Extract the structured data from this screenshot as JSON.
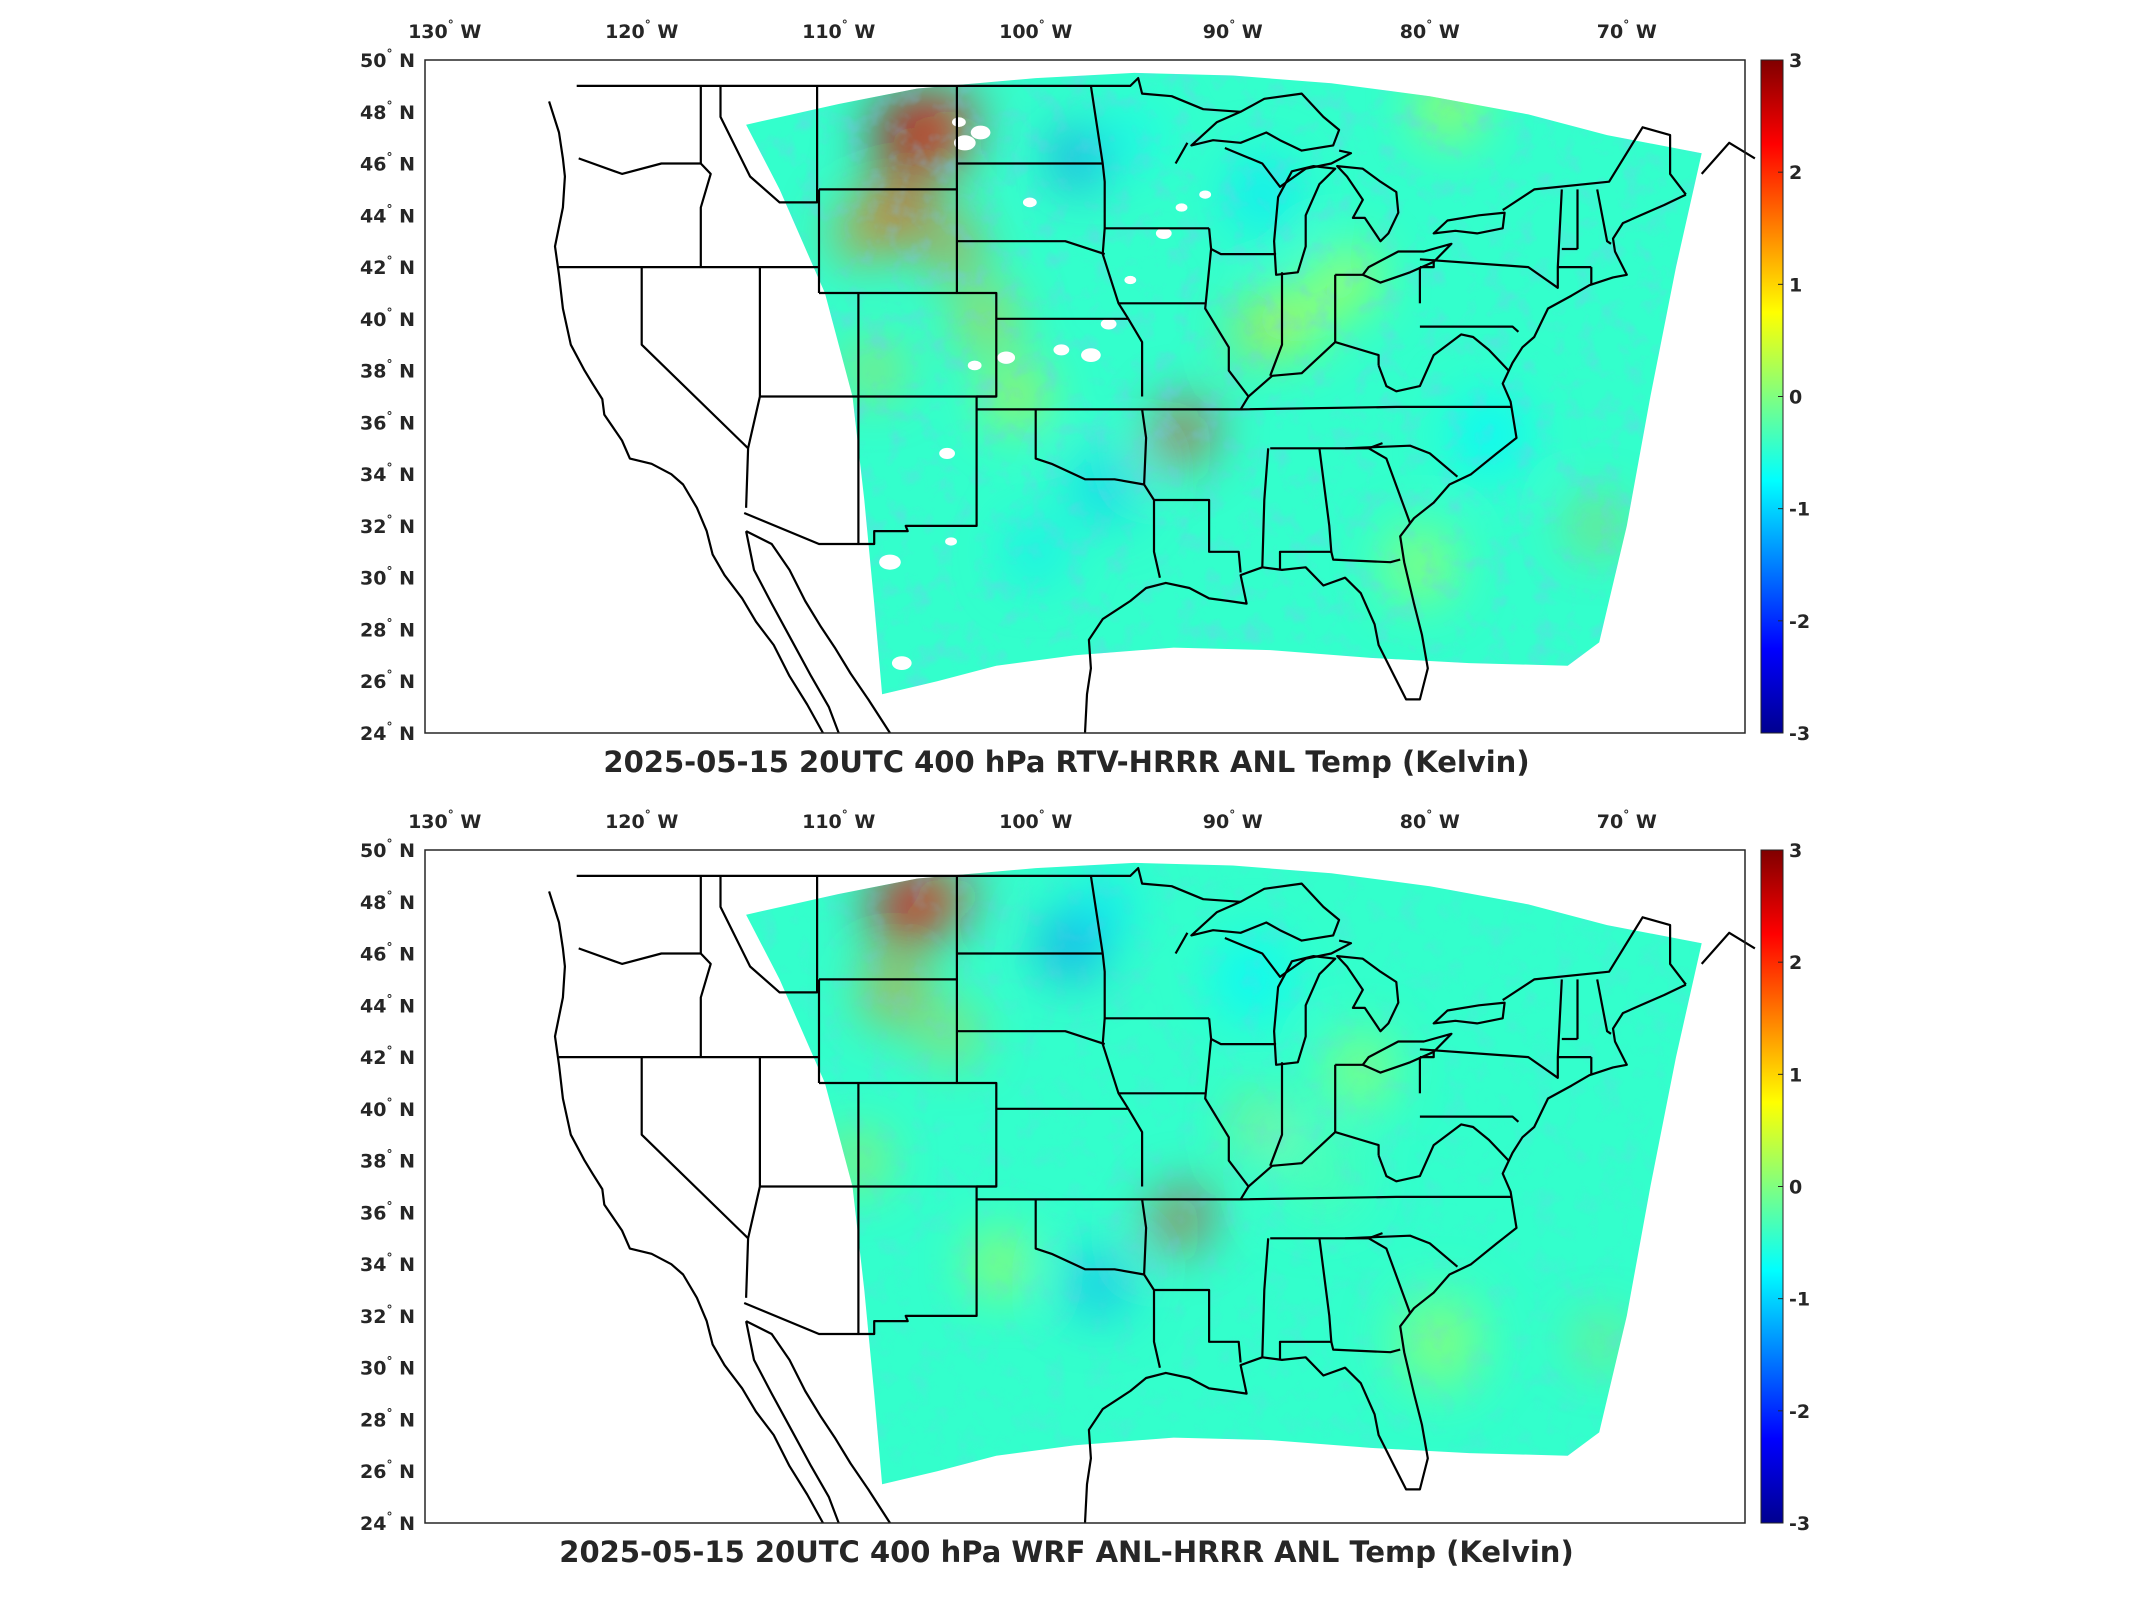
{
  "colors": {
    "colormap": [
      "#00008f",
      "#0000ff",
      "#0080ff",
      "#00ffff",
      "#80ff80",
      "#ffff00",
      "#ff8000",
      "#ff0000",
      "#800000"
    ],
    "border": "#000000",
    "missing": "#ffffff"
  },
  "colorbar": {
    "min": -3,
    "max": 3,
    "ticks": [
      "3",
      "2",
      "1",
      "0",
      "-1",
      "-2",
      "-3"
    ]
  },
  "lon_ticks": [
    {
      "deg": "130",
      "hemi": "W"
    },
    {
      "deg": "120",
      "hemi": "W"
    },
    {
      "deg": "110",
      "hemi": "W"
    },
    {
      "deg": "100",
      "hemi": "W"
    },
    {
      "deg": "90",
      "hemi": "W"
    },
    {
      "deg": "80",
      "hemi": "W"
    },
    {
      "deg": "70",
      "hemi": "W"
    }
  ],
  "lat_ticks": [
    {
      "deg": "50",
      "hemi": "N"
    },
    {
      "deg": "48",
      "hemi": "N"
    },
    {
      "deg": "46",
      "hemi": "N"
    },
    {
      "deg": "44",
      "hemi": "N"
    },
    {
      "deg": "42",
      "hemi": "N"
    },
    {
      "deg": "40",
      "hemi": "N"
    },
    {
      "deg": "38",
      "hemi": "N"
    },
    {
      "deg": "36",
      "hemi": "N"
    },
    {
      "deg": "34",
      "hemi": "N"
    },
    {
      "deg": "32",
      "hemi": "N"
    },
    {
      "deg": "30",
      "hemi": "N"
    },
    {
      "deg": "28",
      "hemi": "N"
    },
    {
      "deg": "26",
      "hemi": "N"
    },
    {
      "deg": "24",
      "hemi": "N"
    }
  ],
  "panels": [
    {
      "title": "2025-05-15 20UTC 400 hPa RTV-HRRR ANL Temp (Kelvin)",
      "field": "temperature-difference",
      "missing_data_patches": true
    },
    {
      "title": "2025-05-15 20UTC 400 hPa WRF ANL-HRRR ANL Temp (Kelvin)",
      "field": "temperature-difference",
      "missing_data_patches": false
    }
  ]
}
